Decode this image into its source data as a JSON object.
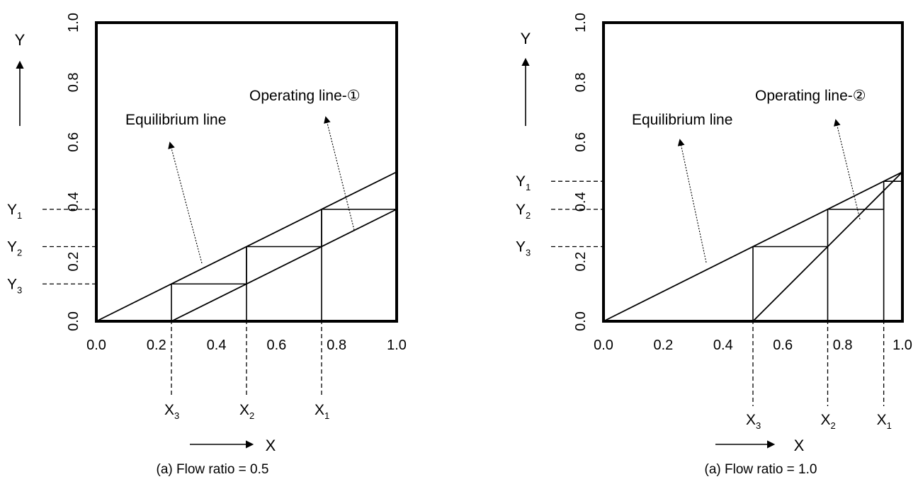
{
  "chart_data": [
    {
      "type": "line",
      "caption": "(a) Flow ratio = 0.5",
      "xlabel": "X",
      "ylabel": "Y",
      "xlim": [
        0,
        1
      ],
      "ylim": [
        0,
        1
      ],
      "x_ticks": [
        "0.0",
        "0.2",
        "0.4",
        "0.6",
        "0.8",
        "1.0"
      ],
      "y_ticks": [
        "0.0",
        "0.2",
        "0.4",
        "0.6",
        "0.8",
        "1.0"
      ],
      "series": [
        {
          "name": "Equilibrium line",
          "points": [
            [
              0,
              0
            ],
            [
              1,
              0.5
            ]
          ]
        },
        {
          "name": "Operating line-①",
          "points": [
            [
              0.25,
              0
            ],
            [
              1,
              0.375
            ]
          ]
        }
      ],
      "stages": [
        {
          "x": [
            0.25,
            0.5
          ],
          "y": [
            0.125,
            0.25
          ]
        },
        {
          "x": [
            0.5,
            0.75
          ],
          "y": [
            0.25,
            0.375
          ]
        },
        {
          "x": [
            0.75,
            1.0
          ],
          "y": [
            0.375,
            0.375
          ]
        }
      ],
      "y_markers": [
        {
          "label": "Y",
          "sub": "1",
          "value": 0.375
        },
        {
          "label": "Y",
          "sub": "2",
          "value": 0.25
        },
        {
          "label": "Y",
          "sub": "3",
          "value": 0.125
        }
      ],
      "x_markers": [
        {
          "label": "X",
          "sub": "3",
          "value": 0.25
        },
        {
          "label": "X",
          "sub": "2",
          "value": 0.5
        },
        {
          "label": "X",
          "sub": "1",
          "value": 0.75
        }
      ]
    },
    {
      "type": "line",
      "caption": "(a) Flow ratio = 1.0",
      "xlabel": "X",
      "ylabel": "Y",
      "xlim": [
        0,
        1
      ],
      "ylim": [
        0,
        1
      ],
      "x_ticks": [
        "0.0",
        "0.2",
        "0.4",
        "0.6",
        "0.8",
        "1.0"
      ],
      "y_ticks": [
        "0.0",
        "0.2",
        "0.4",
        "0.6",
        "0.8",
        "1.0"
      ],
      "series": [
        {
          "name": "Equilibrium line",
          "points": [
            [
              0,
              0
            ],
            [
              1,
              0.5
            ]
          ]
        },
        {
          "name": "Operating line-②",
          "points": [
            [
              0.5,
              0
            ],
            [
              1,
              0.5
            ]
          ]
        }
      ],
      "stages": [
        {
          "x": [
            0.5,
            0.75
          ],
          "y": [
            0.25,
            0.25
          ]
        },
        {
          "x": [
            0.75,
            0.9375
          ],
          "y": [
            0.375,
            0.4375
          ]
        },
        {
          "x": [
            0.9375,
            1.0
          ],
          "y": [
            0.46875,
            0.46875
          ]
        }
      ],
      "y_markers": [
        {
          "label": "Y",
          "sub": "1",
          "value": 0.46875
        },
        {
          "label": "Y",
          "sub": "2",
          "value": 0.375
        },
        {
          "label": "Y",
          "sub": "3",
          "value": 0.25
        }
      ],
      "x_markers": [
        {
          "label": "X",
          "sub": "3",
          "value": 0.5
        },
        {
          "label": "X",
          "sub": "2",
          "value": 0.75
        },
        {
          "label": "X",
          "sub": "1",
          "value": 0.9375
        }
      ]
    }
  ]
}
